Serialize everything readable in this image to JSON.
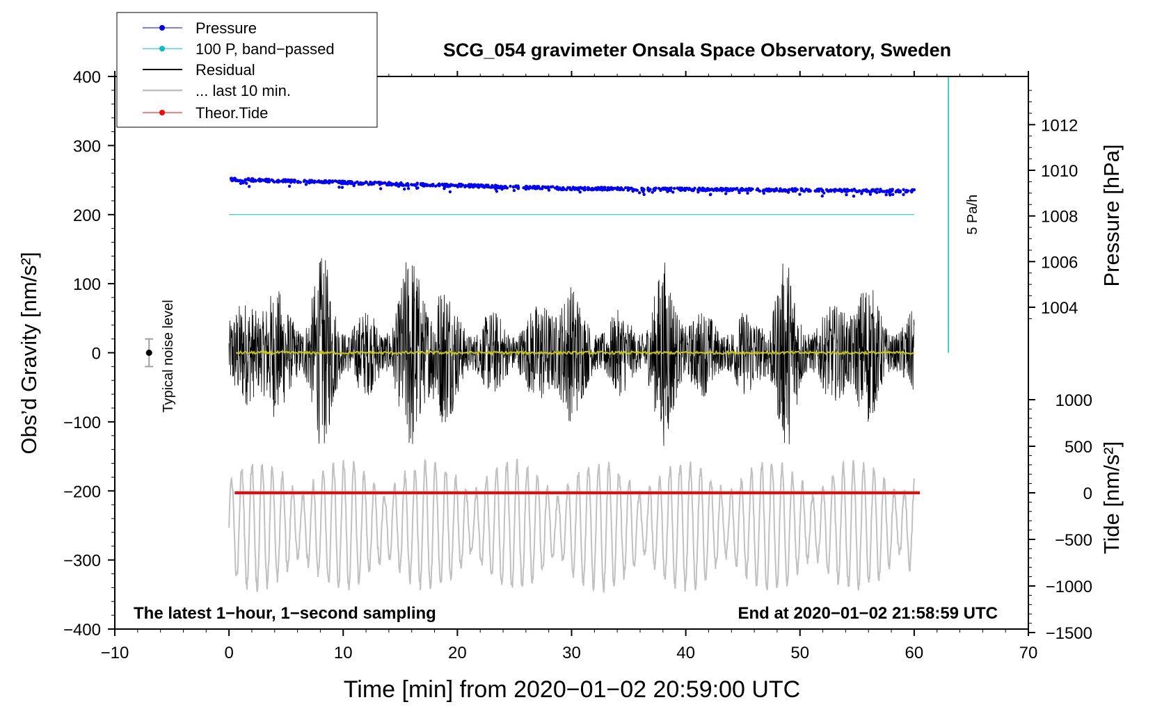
{
  "chart_data": {
    "type": "line",
    "title": "SCG_054 gravimeter Onsala Space Observatory, Sweden",
    "xlabel": "Time [min] from 2020−01−02 20:59:00 UTC",
    "ylabel_left": "Obs’d Gravity [nm/s²]",
    "ylabel_right_pressure": "Pressure [hPa]",
    "ylabel_right_tide": "Tide [nm/s²]",
    "xlim": [
      -10,
      70
    ],
    "ylim": [
      -400,
      400
    ],
    "x_ticks": [
      "−10",
      "0",
      "10",
      "20",
      "30",
      "40",
      "50",
      "60",
      "70"
    ],
    "y_ticks": [
      "400",
      "300",
      "200",
      "100",
      "0",
      "−100",
      "−200",
      "−300",
      "−400"
    ],
    "pressure_ticks": [
      "1012",
      "1010",
      "1008",
      "1006",
      "1004"
    ],
    "tide_ticks": [
      "1000",
      "500",
      "0",
      "−500",
      "−1000",
      "−1500"
    ],
    "legend": {
      "pressure": "Pressure",
      "bandpassed": "100 P, band−passed",
      "residual": "Residual",
      "last10": "... last 10 min.",
      "tide": "Theor.Tide"
    },
    "annotations": {
      "noise": "Typical noise level",
      "scale": "5 Pa/h",
      "bottom_left": "The latest 1−hour, 1−second sampling",
      "bottom_right": "End at 2020−01−02 21:58:59 UTC"
    },
    "series": {
      "pressure_hpa": {
        "start": 1009.6,
        "end": 1009.1,
        "mid": 1009.2,
        "noise": 0.1
      },
      "bandpassed_level": 200,
      "residual_envelope_nm_s2": 130,
      "residual_mean_nm_s2": 0,
      "tide_level_nm_s2": 0,
      "last10_offset_nm_s2": -250,
      "last10_amplitude_nm_s2": 90,
      "noise_level_nm_s2": 20
    },
    "colors": {
      "pressure": "#0000ff",
      "bandpassed": "#00c0c0",
      "residual": "#000000",
      "residual_smooth": "#c8c800",
      "last10": "#c0c0c0",
      "tide": "#ff0000"
    }
  }
}
